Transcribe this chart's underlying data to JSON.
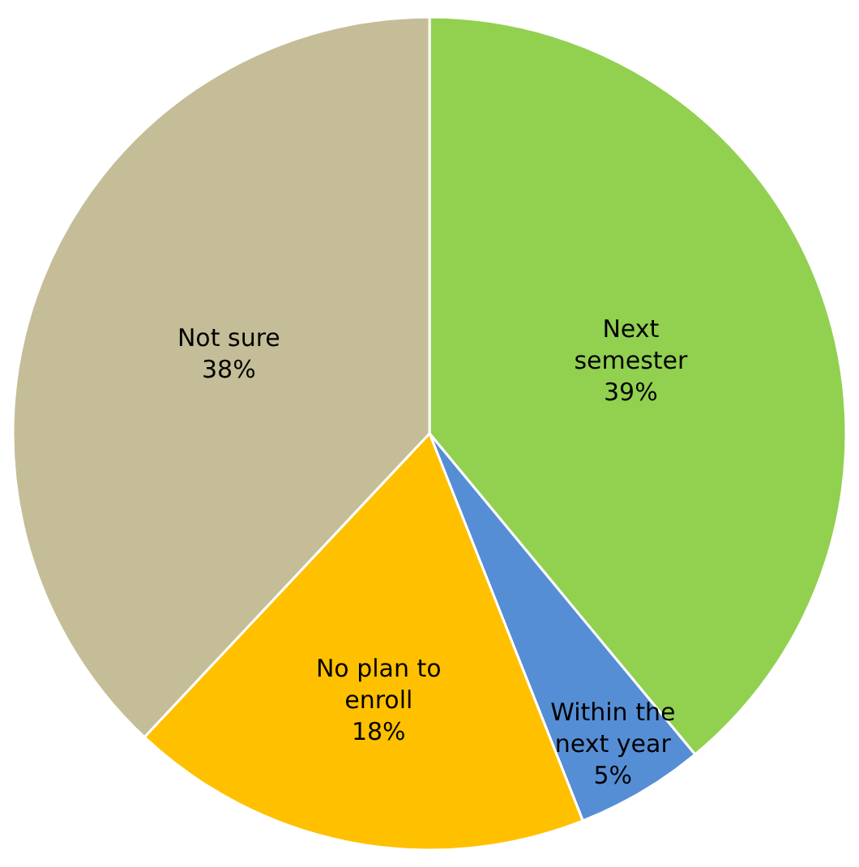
{
  "chart_data": {
    "type": "pie",
    "categories": [
      "Next semester",
      "Within the next year",
      "No plan to enroll",
      "Not sure"
    ],
    "values": [
      39,
      5,
      18,
      38
    ],
    "value_labels": [
      "39%",
      "5%",
      "18%",
      "38%"
    ],
    "colors": [
      "#92d050",
      "#558ed5",
      "#ffc000",
      "#c4bd97"
    ],
    "legend": false
  }
}
